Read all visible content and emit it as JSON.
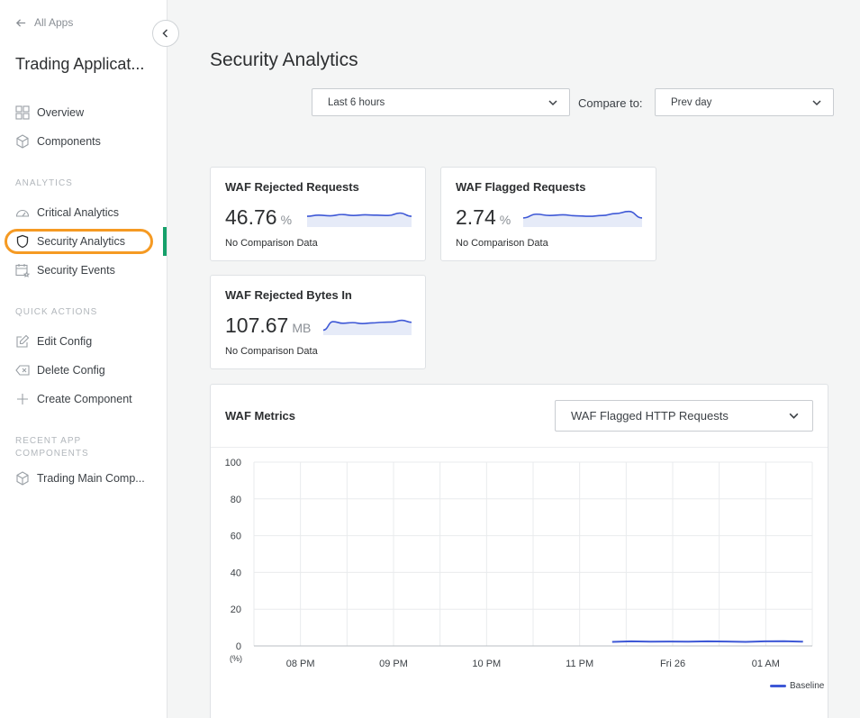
{
  "sidebar": {
    "back_label": "All Apps",
    "app_title": "Trading Applicat...",
    "items_top": [
      {
        "label": "Overview",
        "icon": "grid-icon"
      },
      {
        "label": "Components",
        "icon": "cube-icon"
      }
    ],
    "section_analytics": "ANALYTICS",
    "items_analytics": [
      {
        "label": "Critical Analytics",
        "icon": "gauge-icon"
      },
      {
        "label": "Security Analytics",
        "icon": "shield-icon",
        "active": true
      },
      {
        "label": "Security Events",
        "icon": "calendar-star-icon"
      }
    ],
    "section_quick": "QUICK ACTIONS",
    "items_quick": [
      {
        "label": "Edit Config",
        "icon": "edit-icon"
      },
      {
        "label": "Delete Config",
        "icon": "delete-icon"
      },
      {
        "label": "Create Component",
        "icon": "plus-icon"
      }
    ],
    "section_recent_line1": "RECENT APP",
    "section_recent_line2": "COMPONENTS",
    "items_recent": [
      {
        "label": "Trading Main Comp...",
        "icon": "cube-icon"
      }
    ]
  },
  "main": {
    "title": "Security Analytics",
    "time_range": "Last 6 hours",
    "compare_label": "Compare to:",
    "compare_value": "Prev day"
  },
  "cards": [
    {
      "title": "WAF Rejected Requests",
      "value": "46.76",
      "unit": "%",
      "sub": "No Comparison Data",
      "spark": [
        0.55,
        0.62,
        0.58,
        0.66,
        0.6,
        0.64,
        0.62,
        0.6,
        0.75,
        0.55
      ]
    },
    {
      "title": "WAF Flagged Requests",
      "value": "2.74",
      "unit": "%",
      "sub": "No Comparison Data",
      "spark": [
        0.45,
        0.68,
        0.6,
        0.64,
        0.58,
        0.55,
        0.6,
        0.72,
        0.85,
        0.45
      ]
    },
    {
      "title": "WAF Rejected Bytes In",
      "value": "107.67",
      "unit": "MB",
      "sub": "No Comparison Data",
      "spark": [
        0.2,
        0.72,
        0.62,
        0.66,
        0.6,
        0.64,
        0.68,
        0.7,
        0.8,
        0.68
      ]
    }
  ],
  "metrics": {
    "title": "WAF Metrics",
    "selected_metric": "WAF Flagged HTTP Requests"
  },
  "chart_data": {
    "type": "line",
    "title": "",
    "ylabel": "(%)",
    "ylim": [
      0,
      100
    ],
    "yticks": [
      "100",
      "80",
      "60",
      "40",
      "20",
      "0"
    ],
    "xticks": [
      "08 PM",
      "09 PM",
      "10 PM",
      "11 PM",
      "Fri 26",
      "01 AM"
    ],
    "series": [
      {
        "name": "Baseline",
        "color": "#3e58d6",
        "points": [
          [
            0.0,
            2.2
          ],
          [
            0.1,
            2.5
          ],
          [
            0.2,
            2.3
          ],
          [
            0.3,
            2.4
          ],
          [
            0.4,
            2.3
          ],
          [
            0.5,
            2.5
          ],
          [
            0.6,
            2.4
          ],
          [
            0.7,
            2.2
          ],
          [
            0.8,
            2.5
          ],
          [
            0.9,
            2.6
          ],
          [
            1.0,
            2.3
          ]
        ]
      }
    ],
    "legend": "bottom-right",
    "grid": true
  }
}
